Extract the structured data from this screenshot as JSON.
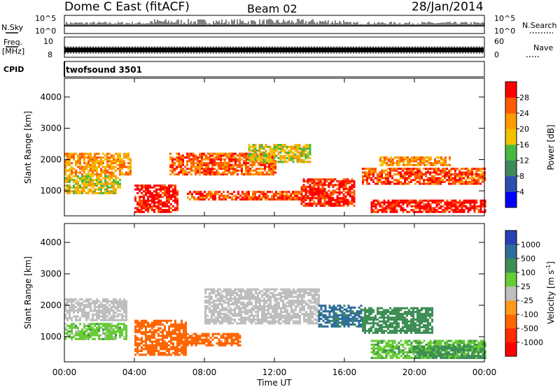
{
  "header": {
    "station": "Dome C East (fitACF)",
    "beam": "Beam 02",
    "date": "28/Jan/2014"
  },
  "strips": {
    "nsky_label": "N.Sky",
    "nsky_ticks": [
      "10^5",
      "10^0"
    ],
    "nsearch_label": "N.Search",
    "freq_label": "Freq.",
    "freq_unit": "[MHz]",
    "freq_ticks": [
      "10",
      "8"
    ],
    "nave_ticks": [
      "60",
      "0"
    ],
    "nave_label": "Nave",
    "cpid_label": "CPID",
    "cpid_value": "twofsound 3501"
  },
  "colors": {
    "power": [
      "#0000ff",
      "#2e4fb0",
      "#3e8a5a",
      "#49b843",
      "#f2c200",
      "#ff9a00",
      "#ff5a00",
      "#ff0000"
    ],
    "velocity": [
      "#2a41b6",
      "#2f6e9c",
      "#3e8e56",
      "#66cc33",
      "#bebebe",
      "#bebebe",
      "#ff9a1a",
      "#ff6600",
      "#ff2a00",
      "#ff0000"
    ]
  },
  "chart_data": [
    {
      "type": "heatmap",
      "name": "power",
      "ylabel": "Slant Range [km]",
      "y_ticks": [
        "1000",
        "2000",
        "3000",
        "4000"
      ],
      "ylim": [
        200,
        4600
      ],
      "colorbar_label": "Power [dB]",
      "colorbar_ticks": [
        "4",
        "8",
        "12",
        "16",
        "20",
        "24",
        "28"
      ],
      "colorbar_range": [
        0,
        32
      ],
      "echo_bands": [
        {
          "t0": 0,
          "t1": 3.8,
          "r0": 1500,
          "r1": 2200,
          "v": 22
        },
        {
          "t0": 0,
          "t1": 3.2,
          "r0": 900,
          "r1": 1500,
          "v": 18
        },
        {
          "t0": 4.0,
          "t1": 6.5,
          "r0": 300,
          "r1": 1200,
          "v": 30
        },
        {
          "t0": 6.0,
          "t1": 12.0,
          "r0": 1500,
          "r1": 2200,
          "v": 26
        },
        {
          "t0": 7.0,
          "t1": 13.5,
          "r0": 700,
          "r1": 1000,
          "v": 27
        },
        {
          "t0": 10.5,
          "t1": 14.0,
          "r0": 1900,
          "r1": 2500,
          "v": 18
        },
        {
          "t0": 13.5,
          "t1": 16.5,
          "r0": 500,
          "r1": 1400,
          "v": 29
        },
        {
          "t0": 17.5,
          "t1": 24.0,
          "r0": 300,
          "r1": 700,
          "v": 30
        },
        {
          "t0": 17.0,
          "t1": 24.0,
          "r0": 1200,
          "r1": 1700,
          "v": 27
        },
        {
          "t0": 18.0,
          "t1": 22.0,
          "r0": 1800,
          "r1": 2100,
          "v": 22
        }
      ]
    },
    {
      "type": "heatmap",
      "name": "velocity",
      "ylabel": "Slant Range [km]",
      "y_ticks": [
        "1000",
        "2000",
        "3000",
        "4000"
      ],
      "ylim": [
        200,
        4600
      ],
      "colorbar_label": "Velocity [m s^-1]",
      "colorbar_ticks": [
        "1000",
        "500",
        "100",
        "25",
        "-25",
        "-100",
        "-500",
        "-1000"
      ],
      "x": [
        "00:00",
        "04:00",
        "08:00",
        "12:00",
        "16:00",
        "20:00",
        "00:00"
      ],
      "xlabel": "Time UT",
      "echo_bands": [
        {
          "t0": 0,
          "t1": 3.5,
          "r0": 1500,
          "r1": 2200,
          "v": 0
        },
        {
          "t0": 0,
          "t1": 3.5,
          "r0": 900,
          "r1": 1400,
          "v": 60
        },
        {
          "t0": 4.0,
          "t1": 7.0,
          "r0": 400,
          "r1": 1500,
          "v": -300
        },
        {
          "t0": 6.5,
          "t1": 10.0,
          "r0": 700,
          "r1": 1100,
          "v": -200
        },
        {
          "t0": 8.0,
          "t1": 14.5,
          "r0": 1400,
          "r1": 2500,
          "v": 0
        },
        {
          "t0": 14.5,
          "t1": 17.0,
          "r0": 1300,
          "r1": 2000,
          "v": 700
        },
        {
          "t0": 17.0,
          "t1": 21.0,
          "r0": 1100,
          "r1": 1900,
          "v": 300
        },
        {
          "t0": 17.5,
          "t1": 24.0,
          "r0": 300,
          "r1": 900,
          "v": 80
        },
        {
          "t0": 20.0,
          "t1": 24.0,
          "r0": 300,
          "r1": 700,
          "v": 150
        }
      ]
    }
  ]
}
